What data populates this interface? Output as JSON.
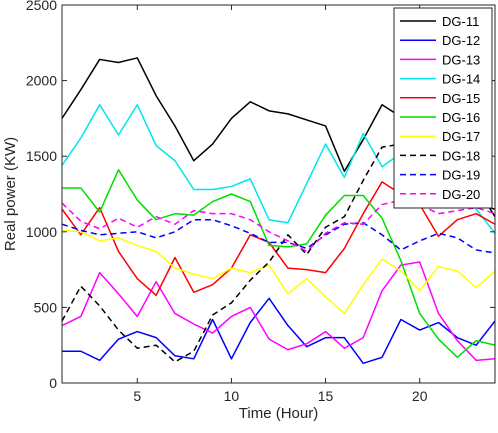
{
  "chart_data": {
    "type": "line",
    "title": "",
    "xlabel": "Time (Hour)",
    "ylabel": "Real power (KW)",
    "xlim": [
      1,
      24
    ],
    "ylim": [
      0,
      2500
    ],
    "xticks": [
      5,
      10,
      15,
      20
    ],
    "yticks": [
      0,
      500,
      1000,
      1500,
      2000,
      2500
    ],
    "grid": false,
    "legend_position": "top-right",
    "x": [
      1,
      2,
      3,
      4,
      5,
      6,
      7,
      8,
      9,
      10,
      11,
      12,
      13,
      14,
      15,
      16,
      17,
      18,
      19,
      20,
      21,
      22,
      23,
      24
    ],
    "series": [
      {
        "name": "DG-11",
        "color": "#000000",
        "dash": "solid",
        "values": [
          1750,
          1940,
          2140,
          2120,
          2150,
          1900,
          1700,
          1470,
          1580,
          1750,
          1860,
          1800,
          1780,
          1740,
          1700,
          1400,
          1610,
          1840,
          1760,
          1720,
          1530,
          1380,
          1300,
          1100
        ]
      },
      {
        "name": "DG-12",
        "color": "#0000ff",
        "dash": "solid",
        "values": [
          210,
          210,
          150,
          290,
          340,
          300,
          180,
          160,
          420,
          160,
          400,
          560,
          380,
          240,
          300,
          300,
          130,
          170,
          420,
          350,
          400,
          300,
          250,
          410
        ]
      },
      {
        "name": "DG-13",
        "color": "#ff00ff",
        "dash": "solid",
        "values": [
          380,
          440,
          730,
          590,
          440,
          670,
          460,
          390,
          330,
          440,
          500,
          290,
          220,
          260,
          340,
          230,
          300,
          610,
          780,
          800,
          460,
          280,
          150,
          160
        ]
      },
      {
        "name": "DG-14",
        "color": "#00e5ee",
        "dash": "solid",
        "values": [
          1440,
          1620,
          1840,
          1640,
          1840,
          1570,
          1470,
          1280,
          1280,
          1300,
          1350,
          1080,
          1060,
          1320,
          1580,
          1360,
          1650,
          1430,
          1520,
          1300,
          1320,
          1400,
          1150,
          990
        ]
      },
      {
        "name": "DG-15",
        "color": "#ff0000",
        "dash": "solid",
        "values": [
          1150,
          980,
          1160,
          870,
          690,
          580,
          830,
          600,
          650,
          760,
          980,
          930,
          760,
          750,
          730,
          890,
          1120,
          1330,
          1250,
          1180,
          970,
          1080,
          1120,
          1050
        ]
      },
      {
        "name": "DG-16",
        "color": "#00dd00",
        "dash": "solid",
        "values": [
          1290,
          1290,
          1130,
          1410,
          1210,
          1080,
          1120,
          1110,
          1200,
          1250,
          1200,
          910,
          900,
          920,
          1110,
          1240,
          1240,
          1090,
          810,
          460,
          290,
          170,
          280,
          250
        ]
      },
      {
        "name": "DG-17",
        "color": "#ffff00",
        "dash": "solid",
        "values": [
          1010,
          1000,
          940,
          960,
          910,
          870,
          760,
          720,
          690,
          760,
          730,
          780,
          590,
          690,
          570,
          460,
          650,
          820,
          740,
          610,
          770,
          740,
          630,
          740
        ]
      },
      {
        "name": "DG-18",
        "color": "#000000",
        "dash": "dashed",
        "values": [
          410,
          640,
          510,
          350,
          230,
          250,
          140,
          210,
          450,
          530,
          680,
          800,
          980,
          850,
          1030,
          1100,
          1340,
          1560,
          1580,
          1460,
          1160,
          1160,
          1180,
          1150
        ]
      },
      {
        "name": "DG-19",
        "color": "#0000ff",
        "dash": "dashed",
        "values": [
          1050,
          1010,
          980,
          990,
          1000,
          960,
          1000,
          1080,
          1080,
          1040,
          990,
          930,
          930,
          890,
          980,
          1050,
          1060,
          980,
          880,
          940,
          990,
          960,
          880,
          860
        ]
      },
      {
        "name": "DG-20",
        "color": "#ff00ff",
        "dash": "dashed",
        "values": [
          1190,
          1070,
          1020,
          1090,
          1030,
          1100,
          1050,
          1140,
          1120,
          1120,
          1080,
          1000,
          940,
          870,
          990,
          1060,
          1050,
          1180,
          1210,
          1180,
          1120,
          1140,
          1160,
          1120
        ]
      }
    ]
  }
}
